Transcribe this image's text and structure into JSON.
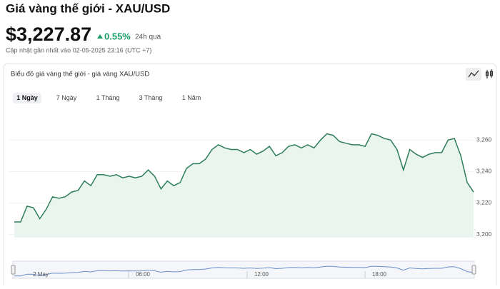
{
  "header": {
    "title": "Giá vàng thế giới - XAU/USD",
    "price": "$3,227.87",
    "change": "0.55%",
    "period": "24h qua",
    "updated": "Cập nhật gần nhất vào 02-05-2025 23:16 (UTC +7)"
  },
  "controls": {
    "ranges": [
      "1 Ngày",
      "7 Ngày",
      "1 Tháng",
      "3 Tháng",
      "1 Năm"
    ],
    "active": 0
  },
  "chart_data": {
    "type": "area",
    "title": "Biểu đồ giá vàng thế giới - giá vàng XAU/USD",
    "color": "#2e7d5b",
    "values": [
      3208,
      3208,
      3218,
      3217,
      3210,
      3216,
      3224,
      3223,
      3224,
      3227,
      3228,
      3234,
      3231,
      3238,
      3238,
      3237,
      3238,
      3236,
      3237,
      3236,
      3237,
      3241,
      3237,
      3229,
      3234,
      3231,
      3233,
      3242,
      3245,
      3245,
      3248,
      3254,
      3257,
      3255,
      3254,
      3254,
      3252,
      3254,
      3251,
      3253,
      3256,
      3250,
      3252,
      3256,
      3257,
      3255,
      3257,
      3255,
      3260,
      3264,
      3263,
      3259,
      3258,
      3257,
      3257,
      3256,
      3264,
      3263,
      3261,
      3260,
      3254,
      3241,
      3254,
      3251,
      3249,
      3251,
      3252,
      3252,
      3260,
      3261,
      3250,
      3233,
      3227
    ],
    "ylim": [
      3198,
      3281
    ],
    "yticks": [
      {
        "value": 3200,
        "label": "3,200"
      },
      {
        "value": 3220,
        "label": "3,220"
      },
      {
        "value": 3240,
        "label": "3,240"
      },
      {
        "value": 3260,
        "label": "3,260"
      }
    ],
    "grid": true,
    "navigator_labels": [
      "2 May",
      "06:00",
      "12:00",
      "18:00"
    ]
  }
}
